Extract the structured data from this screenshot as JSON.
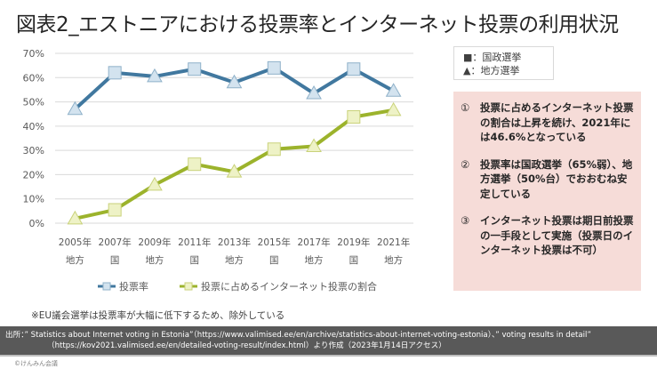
{
  "title": "図表2_エストニアにおける投票率とインターネット投票の利用状況",
  "chart_data": {
    "type": "line",
    "title": "図表2_エストニアにおける投票率とインターネット投票の利用状況",
    "categories": [
      "2005年",
      "2007年",
      "2009年",
      "2011年",
      "2013年",
      "2015年",
      "2017年",
      "2019年",
      "2021年"
    ],
    "category_sublabels": [
      "地方",
      "国",
      "地方",
      "国",
      "地方",
      "国",
      "地方",
      "国",
      "地方"
    ],
    "marker_types": [
      "triangle",
      "square",
      "triangle",
      "square",
      "triangle",
      "square",
      "triangle",
      "square",
      "triangle"
    ],
    "y_ticks": [
      "0%",
      "10%",
      "20%",
      "30%",
      "40%",
      "50%",
      "60%",
      "70%"
    ],
    "ylim": [
      0,
      70
    ],
    "ylabel": "",
    "xlabel": "",
    "grid": true,
    "legend_position": "bottom",
    "series": [
      {
        "name": "投票率",
        "color": "#41789f",
        "marker_fill": "#d3e3ef",
        "marker_stroke": "#8fb1c9",
        "values": [
          47,
          62,
          60.5,
          63.5,
          58,
          64,
          53.5,
          63.5,
          54.5
        ]
      },
      {
        "name": "投票に占めるインターネット投票の割合",
        "color": "#9cb32c",
        "marker_fill": "#eef2c6",
        "marker_stroke": "#c9d27a",
        "values": [
          1.9,
          5.5,
          15.8,
          24.3,
          21.2,
          30.5,
          31.7,
          43.8,
          46.6
        ]
      }
    ]
  },
  "marker_legend": {
    "national": "■：国政選挙",
    "local": "▲：地方選挙"
  },
  "notes": [
    {
      "num": "①",
      "text": "投票に占めるインターネット投票の割合は上昇を続け、2021年には46.6%となっている"
    },
    {
      "num": "②",
      "text": "投票率は国政選挙（65%弱）、地方選挙（50%台）でおおむね安定している"
    },
    {
      "num": "③",
      "text": "インターネット投票は期日前投票の一手段として実施（投票日のインターネット投票は不可）"
    }
  ],
  "footnote": "※EU議会選挙は投票率が大幅に低下するため、除外している",
  "source": {
    "line1": "出所：” Statistics about Internet voting in Estonia”（https://www.valimised.ee/en/archive/statistics-about-internet-voting-estonia）、” voting results in detail”",
    "line2": "（https://kov2021.valimised.ee/en/detailed-voting-result/index.html）より作成（2023年1月14日アクセス）"
  },
  "copyright": "©けんみん会議"
}
